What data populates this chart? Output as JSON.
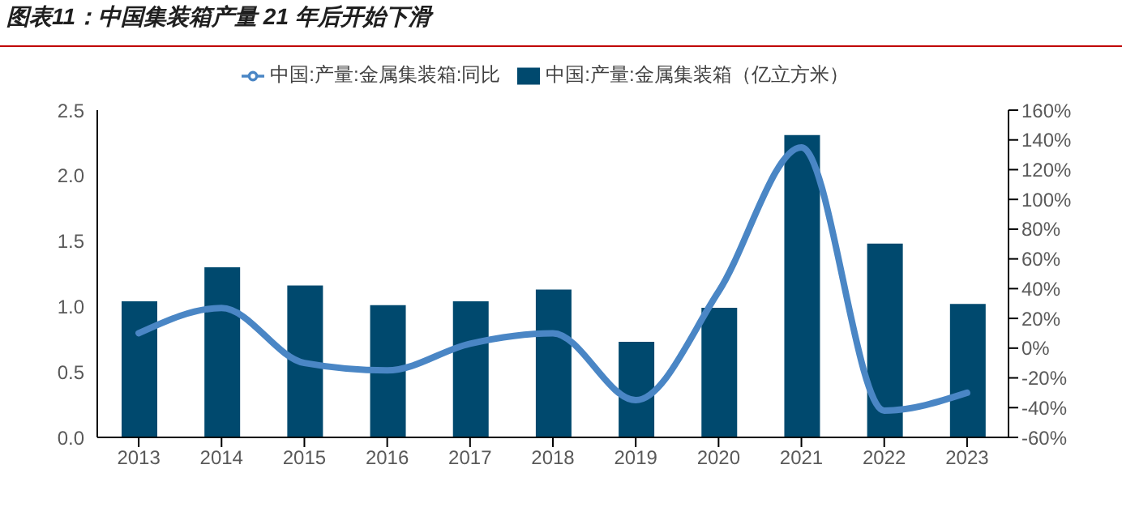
{
  "chart_data": {
    "type": "bar",
    "title": "图表11：中国集装箱产量 21 年后开始下滑",
    "categories": [
      "2013",
      "2014",
      "2015",
      "2016",
      "2017",
      "2018",
      "2019",
      "2020",
      "2021",
      "2022",
      "2023"
    ],
    "series": [
      {
        "name": "中国:产量:金属集装箱（亿立方米）",
        "color": "#00496e",
        "values": [
          1.04,
          1.3,
          1.16,
          1.01,
          1.04,
          1.13,
          0.73,
          0.99,
          2.31,
          1.48,
          1.02
        ]
      },
      {
        "name": "中国:产量:金属集装箱:同比",
        "type": "line",
        "axis": "y2",
        "color": "#4a86c5",
        "values": [
          10,
          27,
          -10,
          -15,
          3,
          10,
          -35,
          38,
          135,
          -42,
          -30
        ]
      }
    ],
    "ylim": [
      0,
      2.5
    ],
    "yticks": [
      {
        "value": 0,
        "label": "0.0"
      },
      {
        "value": 0.5,
        "label": "0.5"
      },
      {
        "value": 1,
        "label": "1.0"
      },
      {
        "value": 1.5,
        "label": "1.5"
      },
      {
        "value": 2,
        "label": "2.0"
      },
      {
        "value": 2.5,
        "label": "2.5"
      }
    ],
    "y2lim": [
      -60,
      160
    ],
    "y2ticks": [
      {
        "value": -60,
        "label": "-60%"
      },
      {
        "value": -40,
        "label": "-40%"
      },
      {
        "value": -20,
        "label": "-20%"
      },
      {
        "value": 0,
        "label": "0%"
      },
      {
        "value": 20,
        "label": "20%"
      },
      {
        "value": 40,
        "label": "40%"
      },
      {
        "value": 60,
        "label": "60%"
      },
      {
        "value": 80,
        "label": "80%"
      },
      {
        "value": 100,
        "label": "100%"
      },
      {
        "value": 120,
        "label": "120%"
      },
      {
        "value": 140,
        "label": "140%"
      },
      {
        "value": 160,
        "label": "160%"
      }
    ],
    "legend": "top",
    "grid": false
  }
}
